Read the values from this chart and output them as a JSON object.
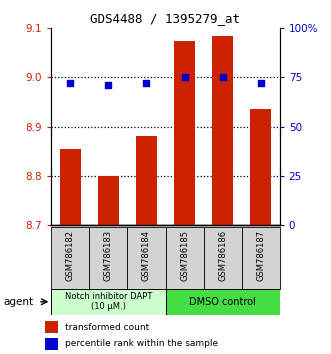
{
  "title": "GDS4488 / 1395279_at",
  "samples": [
    "GSM786182",
    "GSM786183",
    "GSM786184",
    "GSM786185",
    "GSM786186",
    "GSM786187"
  ],
  "bar_values": [
    8.855,
    8.8,
    8.88,
    9.075,
    9.085,
    8.935
  ],
  "percentile_values": [
    72,
    71,
    72,
    75,
    75,
    72
  ],
  "ylim_left": [
    8.7,
    9.1
  ],
  "ylim_right": [
    0,
    100
  ],
  "yticks_left": [
    8.7,
    8.8,
    8.9,
    9.0,
    9.1
  ],
  "yticks_right": [
    0,
    25,
    50,
    75,
    100
  ],
  "yticklabels_right": [
    "0",
    "25",
    "50",
    "75",
    "100%"
  ],
  "bar_color": "#cc2200",
  "percentile_color": "#0000cc",
  "group1_label": "Notch inhibitor DAPT\n(10 μM.)",
  "group2_label": "DMSO control",
  "group1_color": "#ccffcc",
  "group2_color": "#44dd44",
  "group1_indices": [
    0,
    1,
    2
  ],
  "group2_indices": [
    3,
    4,
    5
  ],
  "legend_bar_label": "transformed count",
  "legend_pct_label": "percentile rank within the sample",
  "agent_label": "agent",
  "bar_bottom": 8.7,
  "tick_label_color_left": "#cc2200",
  "tick_label_color_right": "#0000cc",
  "bar_width": 0.55,
  "grid_yticks": [
    8.8,
    8.9,
    9.0
  ]
}
